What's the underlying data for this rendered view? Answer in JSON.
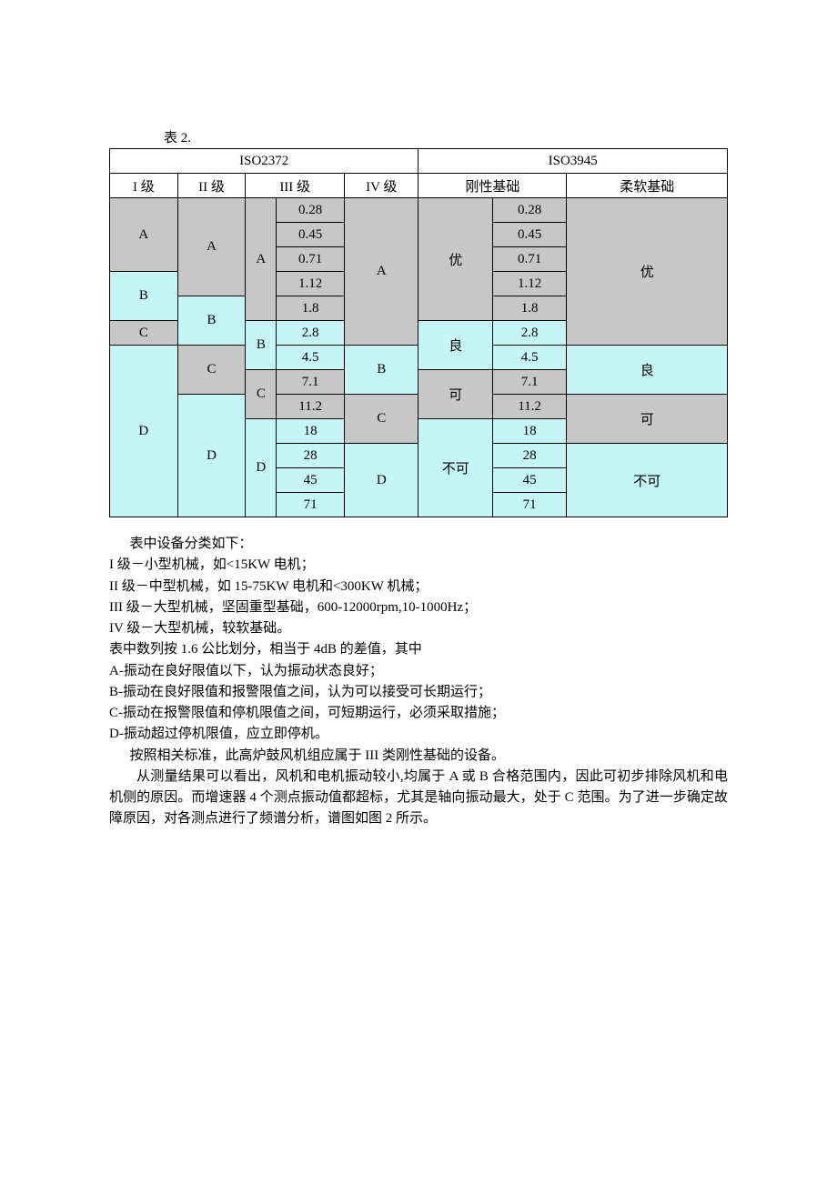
{
  "caption": "表 2.",
  "colors": {
    "grey": "#c7c7c7",
    "cyan": "#c5f5f5",
    "white": "#ffffff",
    "border": "#000000",
    "text": "#000000"
  },
  "table": {
    "col_widths_pct": [
      11,
      11,
      5,
      11,
      12,
      12,
      12,
      26
    ],
    "header1": {
      "left": "ISO2372",
      "right": "ISO3945"
    },
    "header2": [
      "I 级",
      "II 级",
      "III 级",
      "IV 级",
      "刚性基础",
      "柔软基础"
    ],
    "values": [
      "0.28",
      "0.45",
      "0.71",
      "1.12",
      "1.8",
      "2.8",
      "4.5",
      "7.1",
      "11.2",
      "18",
      "28",
      "45",
      "71"
    ],
    "iso2372": {
      "I": {
        "segments": [
          [
            "A",
            3,
            "grey"
          ],
          [
            "B",
            2,
            "cyan"
          ],
          [
            "C",
            1,
            "grey"
          ],
          [
            "D",
            7,
            "cyan"
          ]
        ]
      },
      "II": {
        "segments": [
          [
            "A",
            4,
            "grey"
          ],
          [
            "B",
            2,
            "cyan"
          ],
          [
            "C",
            2,
            "grey"
          ],
          [
            "D",
            5,
            "cyan"
          ]
        ]
      },
      "III": {
        "segments": [
          [
            "A",
            5,
            "grey"
          ],
          [
            "B",
            2,
            "cyan"
          ],
          [
            "C",
            2,
            "grey"
          ],
          [
            "D",
            4,
            "cyan"
          ]
        ]
      },
      "IV": {
        "segments": [
          [
            "A",
            6,
            "grey"
          ],
          [
            "B",
            2,
            "cyan"
          ],
          [
            "C",
            2,
            "grey"
          ],
          [
            "D",
            3,
            "cyan"
          ]
        ]
      }
    },
    "iso3945": {
      "rigid": {
        "segments": [
          [
            "优",
            5,
            "grey"
          ],
          [
            "良",
            2,
            "cyan"
          ],
          [
            "可",
            2,
            "grey"
          ],
          [
            "不可",
            4,
            "cyan"
          ]
        ]
      },
      "soft": {
        "segments": [
          [
            "优",
            6,
            "grey"
          ],
          [
            "良",
            2,
            "cyan"
          ],
          [
            "可",
            2,
            "grey"
          ],
          [
            "不可",
            3,
            "cyan"
          ]
        ]
      }
    },
    "value_colors": [
      "grey",
      "grey",
      "grey",
      "grey",
      "grey",
      "cyan",
      "cyan",
      "grey",
      "grey",
      "cyan",
      "cyan",
      "cyan",
      "cyan"
    ],
    "rigid_value_colors": [
      "grey",
      "grey",
      "grey",
      "grey",
      "grey",
      "cyan",
      "cyan",
      "grey",
      "grey",
      "cyan",
      "cyan",
      "cyan",
      "cyan"
    ]
  },
  "paragraphs": {
    "p1": "表中设备分类如下：",
    "p2": "I 级－小型机械，如<15KW 电机；",
    "p3": "II 级－中型机械，如 15-75KW 电机和<300KW 机械；",
    "p4": "III 级－大型机械，坚固重型基础，600-12000rpm,10-1000Hz；",
    "p5": "IV 级－大型机械，较软基础。",
    "p6": "表中数列按 1.6 公比划分，相当于 4dB 的差值，其中",
    "p7": "A-振动在良好限值以下，认为振动状态良好；",
    "p8": "B-振动在良好限值和报警限值之间，认为可以接受可长期运行；",
    "p9": "C-振动在报警限值和停机限值之间，可短期运行，必须采取措施；",
    "p10": "D-振动超过停机限值，应立即停机。",
    "p11": "按照相关标准，此高炉鼓风机组应属于 III 类刚性基础的设备。",
    "p12": "从测量结果可以看出，风机和电机振动较小,均属于 A 或 B 合格范围内，因此可初步排除风机和电机侧的原因。而增速器 4 个测点振动值都超标，尤其是轴向振动最大，处于 C 范围。为了进一步确定故障原因，对各测点进行了频谱分析，谱图如图 2 所示。"
  }
}
